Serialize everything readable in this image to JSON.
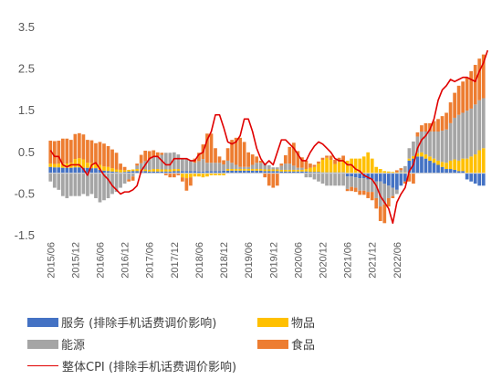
{
  "chart_data": {
    "type": "bar",
    "stacked": true,
    "title": "",
    "xlabel": "",
    "ylabel": "",
    "ylim": [
      -1.5,
      3.5
    ],
    "yticks": [
      "3.5",
      "2.5",
      "1.5",
      "0.5",
      "-0.5",
      "-1.5"
    ],
    "xtick_labels": [
      "2015/06",
      "2015/12",
      "2016/06",
      "2016/12",
      "2017/06",
      "2017/12",
      "2018/06",
      "2018/12",
      "2019/06",
      "2019/12",
      "2020/06",
      "2020/12",
      "2021/06",
      "2021/12",
      "2022/06"
    ],
    "grid": false,
    "legend_position": "bottom",
    "colors": {
      "services": "#4472c4",
      "goods": "#ffc000",
      "energy": "#a5a5a5",
      "food": "#ed7d31",
      "cpi": "#e00000"
    },
    "start_month": "2015/06",
    "series": [
      {
        "key": "services",
        "name": "服务 (排除手机话费调价影响)",
        "kind": "bar",
        "values": [
          0.15,
          0.14,
          0.14,
          0.13,
          0.13,
          0.13,
          0.14,
          0.14,
          0.13,
          0.13,
          0.12,
          0.12,
          0.08,
          0.06,
          0.05,
          0.04,
          0.03,
          0.02,
          0.03,
          0.04,
          0.05,
          0.05,
          0.05,
          0.05,
          0.04,
          0.04,
          0.04,
          0.04,
          0.04,
          0.04,
          0.05,
          0.05,
          0.05,
          0.05,
          0.05,
          0.05,
          0.04,
          0.04,
          0.05,
          0.05,
          0.05,
          0.05,
          0.06,
          0.06,
          0.06,
          0.06,
          0.06,
          0.06,
          0.06,
          0.06,
          0.06,
          0.06,
          0.05,
          0.05,
          0.05,
          0.05,
          0.04,
          0.04,
          0.04,
          0.04,
          0.04,
          0.04,
          0.04,
          0.03,
          0.03,
          0.03,
          0.02,
          0.02,
          0.02,
          0.02,
          0.02,
          0.02,
          -0.08,
          -0.08,
          -0.1,
          -0.12,
          -0.12,
          -0.15,
          -0.15,
          -0.2,
          -0.2,
          -0.25,
          -0.3,
          -0.35,
          -0.4,
          -0.3,
          -0.2,
          0.3,
          0.35,
          0.4,
          0.4,
          0.35,
          0.3,
          0.25,
          0.2,
          0.15,
          0.1,
          0.1,
          0.08,
          0.05,
          0.05,
          -0.15,
          -0.2,
          -0.25,
          -0.3,
          -0.3
        ]
      },
      {
        "key": "goods",
        "name": "物品",
        "kind": "bar",
        "values": [
          0.08,
          0.08,
          0.09,
          0.1,
          0.1,
          0.12,
          0.2,
          0.22,
          0.2,
          0.12,
          0.12,
          0.1,
          0.12,
          0.1,
          0.1,
          0.08,
          0.06,
          0.06,
          0.04,
          0.04,
          0.04,
          0.05,
          0.04,
          0.04,
          0.04,
          0.06,
          0.06,
          0.05,
          0.05,
          0.05,
          0.05,
          0.05,
          -0.1,
          -0.12,
          -0.1,
          -0.08,
          -0.08,
          -0.1,
          -0.08,
          -0.05,
          -0.05,
          -0.05,
          -0.05,
          0.04,
          0.04,
          0.04,
          0.04,
          0.04,
          0.04,
          0.04,
          0.04,
          0.04,
          0.04,
          0.04,
          0.04,
          0.04,
          0.04,
          0.04,
          0.04,
          0.04,
          0.04,
          0.04,
          0.06,
          0.1,
          0.12,
          0.2,
          0.3,
          0.35,
          0.3,
          0.2,
          0.25,
          0.3,
          0.3,
          0.35,
          0.35,
          0.35,
          0.4,
          0.5,
          0.35,
          0.15,
          0.1,
          0.05,
          0.04,
          0.03,
          0.02,
          0.02,
          0.02,
          0.05,
          0.06,
          0.08,
          0.1,
          0.1,
          0.1,
          0.1,
          0.1,
          0.12,
          0.15,
          0.2,
          0.25,
          0.25,
          0.3,
          0.35,
          0.4,
          0.45,
          0.55,
          0.6
        ]
      },
      {
        "key": "energy",
        "name": "能源",
        "kind": "bar",
        "values": [
          -0.2,
          -0.35,
          -0.4,
          -0.55,
          -0.6,
          -0.55,
          -0.55,
          -0.55,
          -0.5,
          -0.55,
          -0.5,
          -0.6,
          -0.7,
          -0.65,
          -0.6,
          -0.5,
          -0.45,
          -0.35,
          -0.25,
          -0.15,
          -0.08,
          0.08,
          0.15,
          0.2,
          0.25,
          0.3,
          0.3,
          0.35,
          0.4,
          0.4,
          0.4,
          0.35,
          0.3,
          0.3,
          0.25,
          0.2,
          0.25,
          0.3,
          0.2,
          0.2,
          0.2,
          0.2,
          0.15,
          0.2,
          0.15,
          0.1,
          0.05,
          0.05,
          0.05,
          0.1,
          0.15,
          0.15,
          0.15,
          0.1,
          0.05,
          0.05,
          0.1,
          0.15,
          0.15,
          0.1,
          0.05,
          0.05,
          -0.1,
          -0.1,
          -0.15,
          -0.2,
          -0.25,
          -0.3,
          -0.3,
          -0.3,
          -0.3,
          -0.3,
          -0.3,
          -0.25,
          -0.25,
          -0.3,
          -0.3,
          -0.3,
          -0.3,
          -0.4,
          -0.6,
          -0.5,
          -0.3,
          -0.2,
          -0.1,
          0.05,
          0.15,
          0.25,
          0.35,
          0.4,
          0.5,
          0.55,
          0.6,
          0.65,
          0.7,
          0.75,
          0.8,
          0.9,
          1.0,
          1.1,
          1.1,
          1.15,
          1.15,
          1.2,
          1.2,
          1.2,
          1.2,
          1.2
        ]
      },
      {
        "key": "food",
        "name": "食品",
        "kind": "bar",
        "values": [
          0.55,
          0.55,
          0.55,
          0.6,
          0.6,
          0.55,
          0.6,
          0.6,
          0.6,
          0.55,
          0.55,
          0.5,
          0.55,
          0.55,
          0.5,
          0.45,
          0.4,
          0.15,
          0.08,
          -0.05,
          -0.1,
          0.05,
          0.2,
          0.25,
          0.2,
          0.15,
          0.1,
          0.05,
          -0.05,
          -0.1,
          -0.1,
          -0.05,
          -0.1,
          -0.3,
          -0.2,
          0.1,
          0.2,
          0.35,
          0.7,
          0.7,
          0.35,
          0.15,
          0.1,
          0.3,
          0.55,
          0.65,
          0.7,
          0.6,
          0.35,
          0.25,
          0.15,
          0.05,
          -0.1,
          -0.3,
          -0.35,
          -0.3,
          0.05,
          0.2,
          0.4,
          0.55,
          0.4,
          0.25,
          0.2,
          0.1,
          0.05,
          0.05,
          0.05,
          0.05,
          0.1,
          0.1,
          0.1,
          0.1,
          -0.05,
          -0.1,
          -0.1,
          -0.1,
          -0.1,
          -0.15,
          -0.2,
          -0.25,
          -0.35,
          -0.45,
          -0.2,
          -0.05,
          0.05,
          0.05,
          -0.05,
          -0.2,
          -0.25,
          0.1,
          0.15,
          0.2,
          0.2,
          0.25,
          0.3,
          0.35,
          0.4,
          0.5,
          0.6,
          0.7,
          0.75,
          0.8,
          0.9,
          0.95,
          1.0,
          1.05,
          1.15,
          1.2
        ]
      },
      {
        "key": "cpi",
        "name": "整体CPI (排除手机话费调价影响)",
        "kind": "line",
        "values": [
          0.55,
          0.4,
          0.4,
          0.2,
          0.15,
          0.2,
          0.2,
          0.2,
          0.1,
          -0.05,
          0.2,
          0.25,
          0.1,
          -0.05,
          -0.15,
          -0.3,
          -0.4,
          -0.5,
          -0.45,
          -0.45,
          -0.4,
          -0.3,
          0.05,
          0.2,
          0.35,
          0.4,
          0.4,
          0.3,
          0.2,
          0.2,
          0.35,
          0.35,
          0.35,
          0.35,
          0.3,
          0.3,
          0.45,
          0.5,
          0.8,
          1.0,
          1.4,
          1.4,
          1.1,
          0.75,
          0.7,
          0.75,
          0.9,
          1.3,
          1.3,
          1.0,
          0.6,
          0.35,
          0.2,
          0.3,
          0.2,
          0.5,
          0.8,
          0.8,
          0.7,
          0.6,
          0.45,
          0.3,
          0.3,
          0.5,
          0.65,
          0.75,
          0.7,
          0.6,
          0.5,
          0.35,
          0.3,
          0.3,
          0.2,
          0.2,
          0.1,
          0.05,
          -0.05,
          -0.1,
          -0.15,
          -0.3,
          -0.55,
          -0.7,
          -0.85,
          -1.2,
          -0.7,
          -0.5,
          -0.35,
          0.05,
          0.2,
          0.6,
          0.8,
          0.9,
          1.05,
          1.3,
          1.75,
          2.0,
          2.1,
          2.25,
          2.2,
          2.25,
          2.3,
          2.3,
          2.25,
          2.2,
          2.45,
          2.65,
          2.95
        ]
      }
    ]
  }
}
